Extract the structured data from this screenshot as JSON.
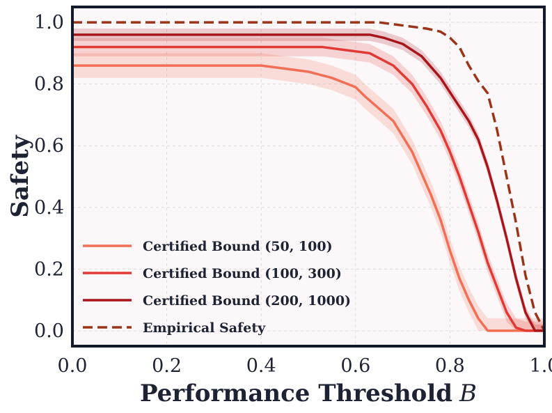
{
  "chart_data": {
    "type": "line",
    "title": "",
    "xlabel": "Performance Threshold",
    "xlabel_symbol": "B",
    "ylabel": "Safety",
    "xlim": [
      0.0,
      1.0
    ],
    "ylim": [
      -0.05,
      1.05
    ],
    "xticks": [
      "0.0",
      "0.2",
      "0.4",
      "0.6",
      "0.8",
      "1.0"
    ],
    "yticks": [
      "0.0",
      "0.2",
      "0.4",
      "0.6",
      "0.8",
      "1.0"
    ],
    "grid": true,
    "legend_position": "lower-left",
    "background_color": "#fcf8f9",
    "frame_color": "#131a2b",
    "series": [
      {
        "name": "Certified Bound (50, 100)",
        "color": "#f26f55",
        "dashed": false,
        "band_halfwidth": 0.04,
        "x": [
          0.0,
          0.4,
          0.45,
          0.5,
          0.55,
          0.6,
          0.62,
          0.65,
          0.68,
          0.7,
          0.72,
          0.74,
          0.76,
          0.78,
          0.8,
          0.82,
          0.84,
          0.86,
          0.88,
          0.9,
          1.0
        ],
        "y": [
          0.86,
          0.86,
          0.85,
          0.84,
          0.82,
          0.79,
          0.76,
          0.72,
          0.68,
          0.63,
          0.58,
          0.51,
          0.44,
          0.36,
          0.26,
          0.17,
          0.1,
          0.04,
          0.0,
          0.0,
          0.0
        ]
      },
      {
        "name": "Certified Bound (100, 300)",
        "color": "#e13a35",
        "dashed": false,
        "band_halfwidth": 0.03,
        "x": [
          0.0,
          0.53,
          0.58,
          0.63,
          0.68,
          0.72,
          0.75,
          0.78,
          0.8,
          0.82,
          0.84,
          0.86,
          0.88,
          0.9,
          0.92,
          0.94,
          0.96,
          1.0
        ],
        "y": [
          0.92,
          0.92,
          0.91,
          0.9,
          0.86,
          0.8,
          0.73,
          0.65,
          0.58,
          0.5,
          0.41,
          0.32,
          0.22,
          0.14,
          0.06,
          0.01,
          0.0,
          0.0
        ]
      },
      {
        "name": "Certified Bound (200, 1000)",
        "color": "#a8161c",
        "dashed": false,
        "band_halfwidth": 0.02,
        "x": [
          0.0,
          0.63,
          0.66,
          0.7,
          0.74,
          0.78,
          0.81,
          0.84,
          0.86,
          0.88,
          0.9,
          0.92,
          0.94,
          0.96,
          0.98,
          1.0
        ],
        "y": [
          0.96,
          0.96,
          0.95,
          0.93,
          0.89,
          0.82,
          0.75,
          0.68,
          0.62,
          0.53,
          0.42,
          0.3,
          0.17,
          0.06,
          0.0,
          0.0
        ]
      },
      {
        "name": "Empirical Safety",
        "color": "#9a3318",
        "dashed": true,
        "band_halfwidth": 0,
        "x": [
          0.0,
          0.65,
          0.7,
          0.75,
          0.78,
          0.8,
          0.82,
          0.84,
          0.86,
          0.88,
          0.9,
          0.92,
          0.94,
          0.96,
          0.98,
          1.0
        ],
        "y": [
          1.0,
          1.0,
          0.99,
          0.98,
          0.97,
          0.95,
          0.92,
          0.86,
          0.81,
          0.77,
          0.65,
          0.5,
          0.35,
          0.18,
          0.06,
          0.0
        ]
      }
    ]
  }
}
